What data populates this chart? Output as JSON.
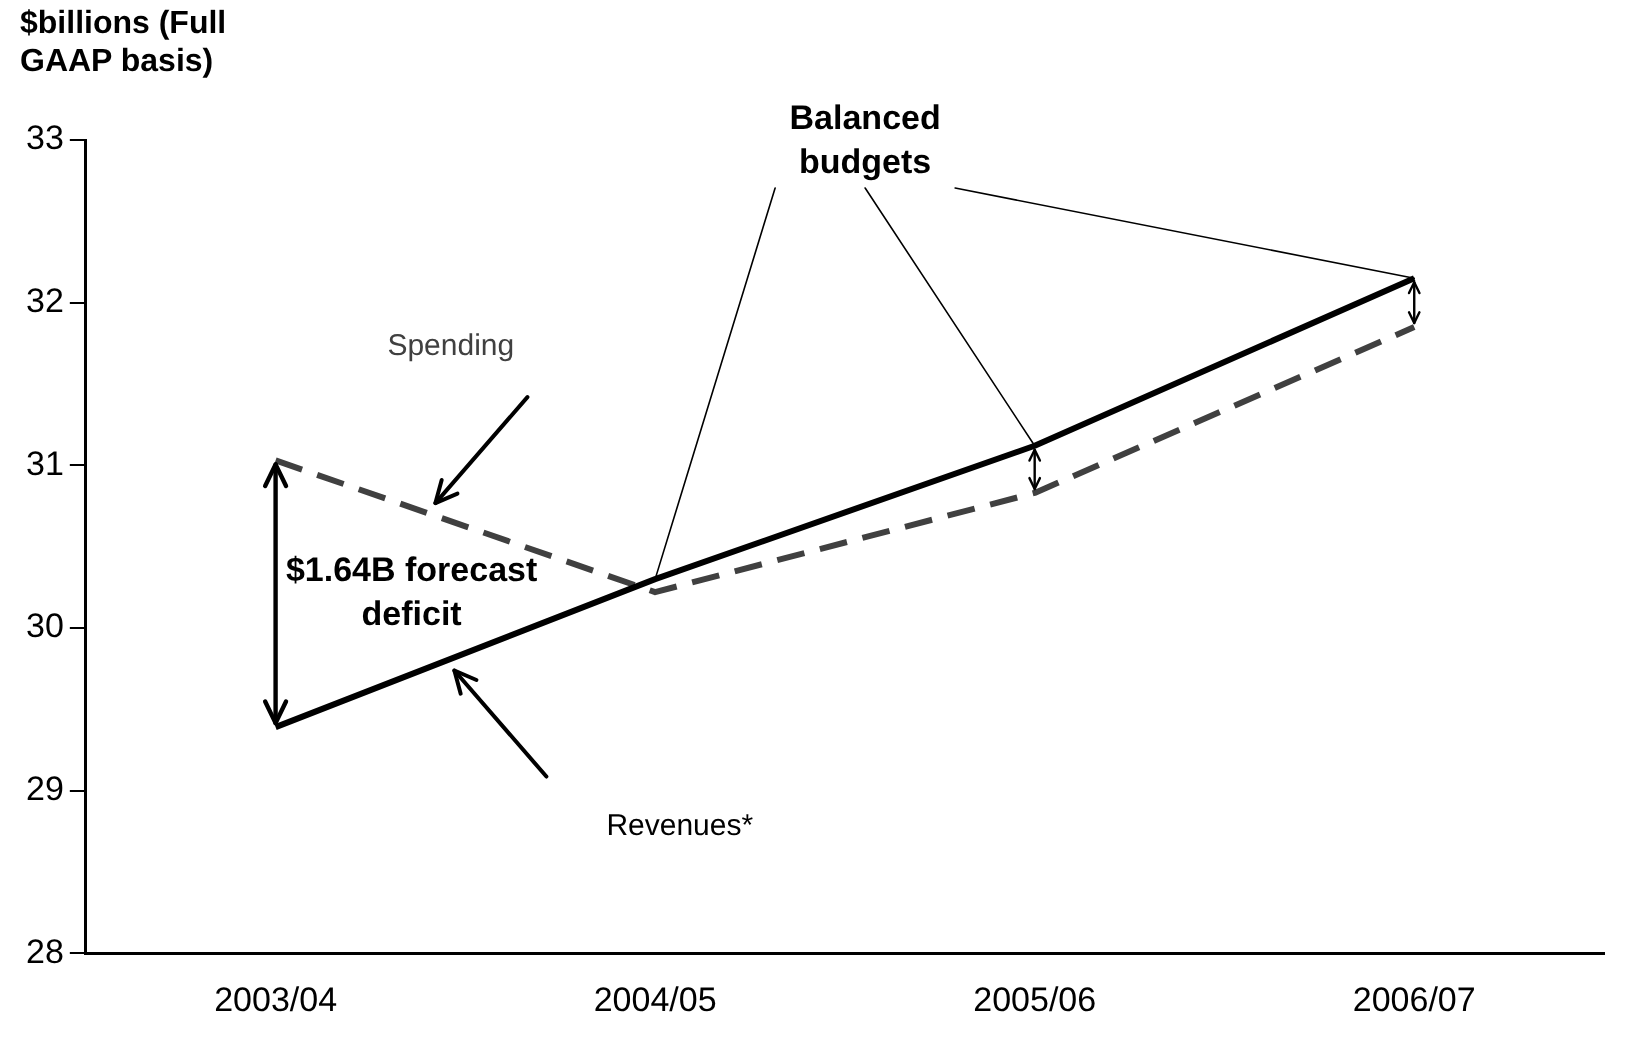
{
  "chart_data": {
    "type": "line",
    "ylabel": "$billions (Full GAAP basis)",
    "categories": [
      "2003/04",
      "2004/05",
      "2005/06",
      "2006/07"
    ],
    "series": [
      {
        "name": "Revenues*",
        "color": "#000000",
        "values": [
          29.39,
          30.3,
          31.12,
          32.15
        ],
        "line_style": "solid"
      },
      {
        "name": "Spending",
        "color": "#404040",
        "values": [
          31.03,
          30.22,
          30.83,
          31.85
        ],
        "line_style": "dashed"
      }
    ],
    "ylim": [
      28,
      33
    ],
    "yticks": [
      28,
      29,
      30,
      31,
      32,
      33
    ],
    "grid": false,
    "legend": false,
    "marker": "none",
    "annotations": [
      "$1.64B forecast deficit",
      {
        "text": "Balanced budgets",
        "x": "2004/05",
        "y": 30.3
      }
    ]
  }
}
